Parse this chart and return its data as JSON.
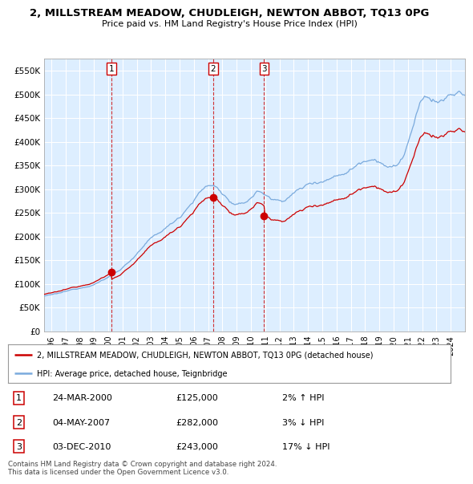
{
  "title": "2, MILLSTREAM MEADOW, CHUDLEIGH, NEWTON ABBOT, TQ13 0PG",
  "subtitle": "Price paid vs. HM Land Registry's House Price Index (HPI)",
  "hpi_color": "#7aaadd",
  "price_color": "#cc0000",
  "marker_color": "#cc0000",
  "ylim": [
    0,
    575000
  ],
  "yticks": [
    0,
    50000,
    100000,
    150000,
    200000,
    250000,
    300000,
    350000,
    400000,
    450000,
    500000,
    550000
  ],
  "ytick_labels": [
    "£0",
    "£50K",
    "£100K",
    "£150K",
    "£200K",
    "£250K",
    "£300K",
    "£350K",
    "£400K",
    "£450K",
    "£500K",
    "£550K"
  ],
  "purchases": [
    {
      "label": "1",
      "date": "2000-03-24",
      "price": 125000,
      "x": 2000.23
    },
    {
      "label": "2",
      "date": "2007-05-04",
      "price": 282000,
      "x": 2007.34
    },
    {
      "label": "3",
      "date": "2010-12-03",
      "price": 243000,
      "x": 2010.92
    }
  ],
  "table_rows": [
    {
      "num": "1",
      "date": "24-MAR-2000",
      "price": "£125,000",
      "hpi": "2% ↑ HPI"
    },
    {
      "num": "2",
      "date": "04-MAY-2007",
      "price": "£282,000",
      "hpi": "3% ↓ HPI"
    },
    {
      "num": "3",
      "date": "03-DEC-2010",
      "price": "£243,000",
      "hpi": "17% ↓ HPI"
    }
  ],
  "legend_line1": "2, MILLSTREAM MEADOW, CHUDLEIGH, NEWTON ABBOT, TQ13 0PG (detached house)",
  "legend_line2": "HPI: Average price, detached house, Teignbridge",
  "footer": "Contains HM Land Registry data © Crown copyright and database right 2024.\nThis data is licensed under the Open Government Licence v3.0.",
  "background_color": "#ffffff",
  "chart_bg_color": "#ddeeff",
  "grid_color": "#ffffff"
}
